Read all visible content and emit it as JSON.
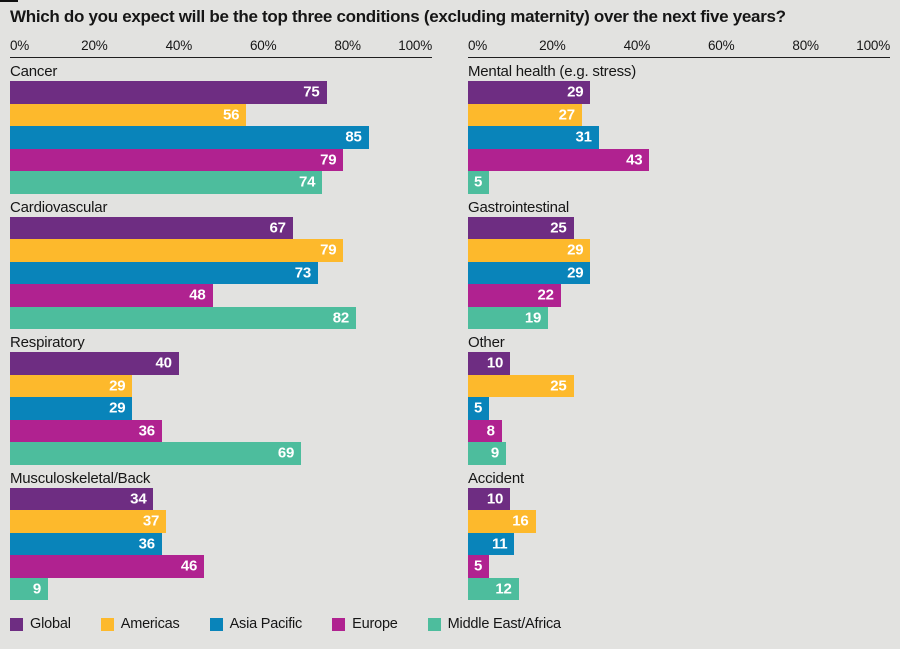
{
  "title": "Which do you expect will be the top three conditions (excluding maternity) over the next five years?",
  "axis_ticks": [
    "0%",
    "20%",
    "40%",
    "60%",
    "80%",
    "100%"
  ],
  "colors": {
    "global": "#6e2d82",
    "americas": "#fdb92c",
    "asia_pacific": "#0984ba",
    "europe": "#b02290",
    "middle_east_africa": "#4dbd9d",
    "background": "#e2e2e0",
    "text": "#161616"
  },
  "chart_data": {
    "type": "bar",
    "orientation": "horizontal",
    "title": "Which do you expect will be the top three conditions (excluding maternity) over the next five years?",
    "xlim": [
      0,
      100
    ],
    "tick_labels": [
      "0%",
      "20%",
      "40%",
      "60%",
      "80%",
      "100%"
    ],
    "legend_position": "bottom",
    "series_names": [
      "Global",
      "Americas",
      "Asia Pacific",
      "Europe",
      "Middle East/Africa"
    ],
    "series_colors": [
      "#6e2d82",
      "#fdb92c",
      "#0984ba",
      "#b02290",
      "#4dbd9d"
    ],
    "columns": [
      {
        "groups": [
          {
            "label": "Cancer",
            "values": [
              75,
              56,
              85,
              79,
              74
            ]
          },
          {
            "label": "Cardiovascular",
            "values": [
              67,
              79,
              73,
              48,
              82
            ]
          },
          {
            "label": "Respiratory",
            "values": [
              40,
              29,
              29,
              36,
              69
            ]
          },
          {
            "label": "Musculoskeletal/Back",
            "values": [
              34,
              37,
              36,
              46,
              9
            ]
          }
        ]
      },
      {
        "groups": [
          {
            "label": "Mental health (e.g. stress)",
            "values": [
              29,
              27,
              31,
              43,
              5
            ]
          },
          {
            "label": "Gastrointestinal",
            "values": [
              25,
              29,
              29,
              22,
              19
            ]
          },
          {
            "label": "Other",
            "values": [
              10,
              25,
              5,
              8,
              9
            ]
          },
          {
            "label": "Accident",
            "values": [
              10,
              16,
              11,
              5,
              12
            ]
          }
        ]
      }
    ]
  },
  "legend": [
    {
      "label": "Global",
      "color": "#6e2d82"
    },
    {
      "label": "Americas",
      "color": "#fdb92c"
    },
    {
      "label": "Asia Pacific",
      "color": "#0984ba"
    },
    {
      "label": "Europe",
      "color": "#b02290"
    },
    {
      "label": "Middle East/Africa",
      "color": "#4dbd9d"
    }
  ]
}
